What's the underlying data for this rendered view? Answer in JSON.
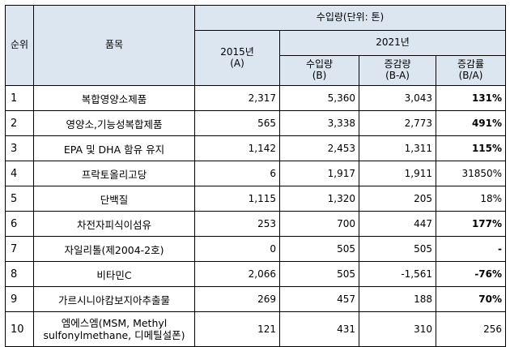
{
  "headers": {
    "rank": "순위",
    "item": "품목",
    "import_group": "수입량(단위: 톤)",
    "y2015": "2015년",
    "y2015_sub": "(A)",
    "y2021": "2021년",
    "imports": "수입량",
    "imports_sub": "(B)",
    "change": "증감량",
    "change_sub": "(B-A)",
    "rate": "증감률",
    "rate_sub": "(B/A)"
  },
  "rows": [
    {
      "rank": "1",
      "item": "복합영양소제품",
      "y2015": "2,317",
      "y2021": "5,360",
      "change": "3,043",
      "rate": "131%",
      "rate_bold": true
    },
    {
      "rank": "2",
      "item": "영양소,기능성복합제품",
      "y2015": "565",
      "y2021": "3,338",
      "change": "2,773",
      "rate": "491%",
      "rate_bold": true
    },
    {
      "rank": "3",
      "item": "EPA 및 DHA 함유 유지",
      "y2015": "1,142",
      "y2021": "2,453",
      "change": "1,311",
      "rate": "115%",
      "rate_bold": true
    },
    {
      "rank": "4",
      "item": "프락토올리고당",
      "y2015": "6",
      "y2021": "1,917",
      "change": "1,911",
      "rate": "31850%",
      "rate_bold": false
    },
    {
      "rank": "5",
      "item": "단백질",
      "y2015": "1,115",
      "y2021": "1,320",
      "change": "205",
      "rate": "18%",
      "rate_bold": false
    },
    {
      "rank": "6",
      "item": "차전자피식이섬유",
      "y2015": "253",
      "y2021": "700",
      "change": "447",
      "rate": "177%",
      "rate_bold": true
    },
    {
      "rank": "7",
      "item": "자일리톨(제2004-2호)",
      "y2015": "0",
      "y2021": "505",
      "change": "505",
      "rate": "-",
      "rate_bold": true
    },
    {
      "rank": "8",
      "item": "비타민C",
      "y2015": "2,066",
      "y2021": "505",
      "change": "-1,561",
      "rate": "-76%",
      "rate_bold": true
    },
    {
      "rank": "9",
      "item": "가르시니아캄보지아추출물",
      "y2015": "269",
      "y2021": "457",
      "change": "188",
      "rate": "70%",
      "rate_bold": true
    },
    {
      "rank": "10",
      "item": "엠에스엠(MSM, Methyl",
      "item_line2": "sulfonylmethane, 디메틸설폰)",
      "y2015": "121",
      "y2021": "431",
      "change": "310",
      "rate": "256",
      "rate_bold": false
    }
  ]
}
